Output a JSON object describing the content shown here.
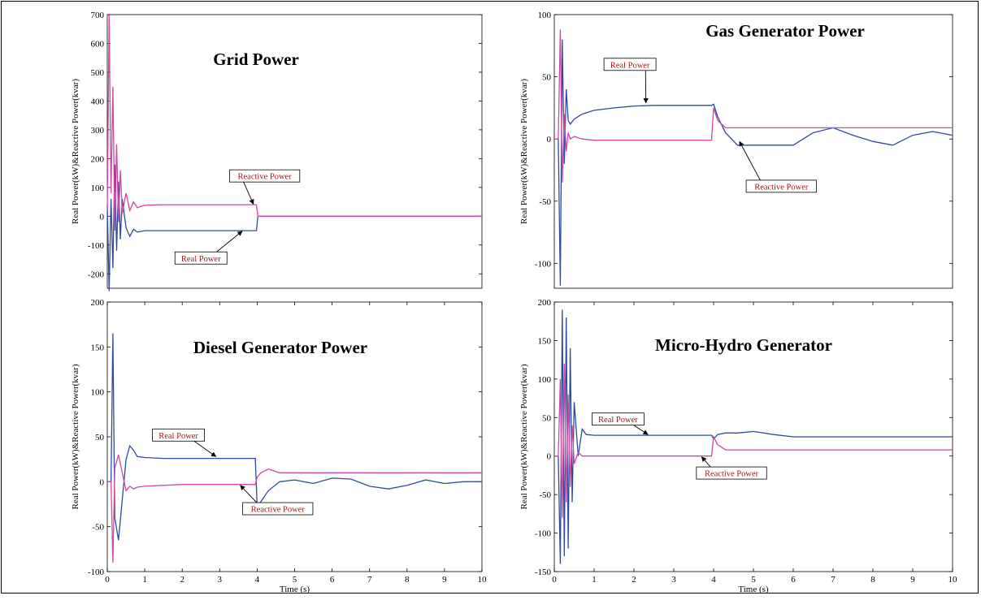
{
  "colors": {
    "real": "#2f4a9c",
    "reactive": "#cc4aa6",
    "label_text": "#a01818",
    "axis": "#000000"
  },
  "chart_data": [
    {
      "type": "line",
      "title": "Grid Power",
      "ylabel": "Real Power(kW)&Reactive Power(kvar)",
      "xlabel": "",
      "xlim": [
        0,
        10
      ],
      "ylim": [
        -250,
        700
      ],
      "yticks": [
        -200,
        -100,
        0,
        100,
        200,
        300,
        400,
        500,
        600,
        700
      ],
      "yticklabels": [
        "-200",
        "-100",
        "0",
        "100",
        "200",
        "300",
        "400",
        "500",
        "600",
        "700"
      ],
      "xticks": [],
      "xticklabels": [],
      "series": [
        {
          "name": "Real Power",
          "color": "#2f4a9c",
          "x": [
            0,
            0.05,
            0.1,
            0.15,
            0.2,
            0.25,
            0.3,
            0.35,
            0.4,
            0.5,
            0.6,
            0.7,
            0.8,
            1,
            1.5,
            2,
            3,
            3.9,
            3.98,
            4.02,
            4.5,
            10
          ],
          "y": [
            40,
            -260,
            60,
            -180,
            180,
            -120,
            120,
            -80,
            60,
            -40,
            -70,
            -45,
            -55,
            -50,
            -50,
            -50,
            -50,
            -50,
            -50,
            0,
            0,
            0
          ]
        },
        {
          "name": "Reactive Power",
          "color": "#cc4aa6",
          "x": [
            0,
            0.05,
            0.1,
            0.15,
            0.2,
            0.25,
            0.3,
            0.35,
            0.4,
            0.5,
            0.6,
            0.7,
            0.8,
            1,
            1.5,
            2,
            3,
            3.9,
            3.98,
            4.02,
            4.5,
            10
          ],
          "y": [
            20,
            700,
            80,
            450,
            -50,
            250,
            -20,
            160,
            10,
            80,
            20,
            50,
            30,
            38,
            40,
            40,
            40,
            40,
            40,
            0,
            0,
            0
          ]
        }
      ],
      "annotations": [
        {
          "text": "Reactive Power",
          "x": 4.2,
          "y": 140,
          "target_x": 3.9,
          "target_y": 42
        },
        {
          "text": "Real Power",
          "x": 2.5,
          "y": -145,
          "target_x": 3.6,
          "target_y": -52
        }
      ]
    },
    {
      "type": "line",
      "title": "Gas Generator Power",
      "ylabel": "Real Power(kW)&Reactive Power(kvar)",
      "xlabel": "",
      "xlim": [
        0,
        10
      ],
      "ylim": [
        -120,
        100
      ],
      "yticks": [
        -100,
        -50,
        0,
        50,
        100
      ],
      "yticklabels": [
        "-100",
        "-50",
        "0",
        "50",
        "100"
      ],
      "xticks": [],
      "xticklabels": [],
      "series": [
        {
          "name": "Real Power",
          "color": "#2f4a9c",
          "x": [
            0,
            0.1,
            0.15,
            0.2,
            0.25,
            0.3,
            0.35,
            0.4,
            0.5,
            0.7,
            1,
            1.5,
            2,
            2.5,
            3,
            3.5,
            3.95,
            4.0,
            4.1,
            4.3,
            4.6,
            5,
            5.5,
            6,
            6.5,
            7,
            7.5,
            8,
            8.5,
            9,
            9.5,
            10
          ],
          "y": [
            0,
            0,
            -118,
            80,
            -20,
            40,
            15,
            12,
            16,
            20,
            23,
            25,
            26.5,
            27,
            27,
            27,
            27,
            28,
            18,
            5,
            -5,
            -5,
            -5,
            -5,
            5,
            9,
            3,
            -2,
            -5,
            3,
            6,
            3
          ]
        },
        {
          "name": "Reactive Power",
          "color": "#cc4aa6",
          "x": [
            0,
            0.1,
            0.15,
            0.2,
            0.25,
            0.3,
            0.35,
            0.4,
            0.5,
            0.7,
            1,
            1.5,
            2,
            2.5,
            3,
            3.5,
            3.95,
            4.0,
            4.1,
            4.3,
            4.6,
            5,
            5.5,
            6,
            6.5,
            7,
            7.5,
            8,
            8.5,
            9,
            9.5,
            10
          ],
          "y": [
            0,
            0,
            88,
            -35,
            20,
            -10,
            5,
            0,
            2,
            0,
            -1,
            -1,
            -1,
            -1,
            -1,
            -1,
            -1,
            25,
            15,
            9,
            9,
            9,
            9,
            9,
            9,
            9,
            9,
            9,
            9,
            9,
            9,
            9
          ]
        }
      ],
      "annotations": [
        {
          "text": "Real Power",
          "x": 1.9,
          "y": 60,
          "target_x": 2.3,
          "target_y": 29
        },
        {
          "text": "Reactive Power",
          "x": 5.7,
          "y": -38,
          "target_x": 4.65,
          "target_y": -2
        }
      ]
    },
    {
      "type": "line",
      "title": "Diesel Generator Power",
      "ylabel": "Real Power(kW)&Reactive Power(kvar)",
      "xlabel": "Time (s)",
      "xlim": [
        0,
        10
      ],
      "ylim": [
        -100,
        200
      ],
      "yticks": [
        -100,
        -50,
        0,
        50,
        100,
        150,
        200
      ],
      "yticklabels": [
        "-100",
        "-50",
        "0",
        "50",
        "100",
        "150",
        "200"
      ],
      "xticks": [
        0,
        1,
        2,
        3,
        4,
        5,
        6,
        7,
        8,
        9,
        10
      ],
      "xticklabels": [
        "0",
        "1",
        "2",
        "3",
        "4",
        "5",
        "6",
        "7",
        "8",
        "9",
        "10"
      ],
      "series": [
        {
          "name": "Real Power",
          "color": "#2f4a9c",
          "x": [
            0,
            0.1,
            0.15,
            0.2,
            0.3,
            0.4,
            0.5,
            0.6,
            0.7,
            0.8,
            1,
            1.5,
            2,
            2.5,
            3,
            3.5,
            3.95,
            4.0,
            4.1,
            4.3,
            4.6,
            5,
            5.5,
            6,
            6.5,
            7,
            7.5,
            8,
            8.5,
            9,
            9.5,
            10
          ],
          "y": [
            0,
            0,
            165,
            -40,
            -65,
            -20,
            25,
            40,
            35,
            28,
            27,
            26,
            26,
            26,
            26,
            26,
            26,
            -28,
            -22,
            -10,
            0,
            2,
            -2,
            4,
            3,
            -5,
            -8,
            -4,
            2,
            -2,
            0,
            0
          ]
        },
        {
          "name": "Reactive Power",
          "color": "#cc4aa6",
          "x": [
            0,
            0.1,
            0.15,
            0.2,
            0.3,
            0.4,
            0.5,
            0.6,
            0.7,
            0.8,
            1,
            1.5,
            2,
            2.5,
            3,
            3.5,
            3.95,
            4.0,
            4.1,
            4.3,
            4.6,
            5,
            5.5,
            6,
            6.5,
            7,
            7.5,
            8,
            8.5,
            9,
            9.5,
            10
          ],
          "y": [
            0,
            0,
            -90,
            15,
            30,
            10,
            -10,
            -5,
            -8,
            -6,
            -5,
            -4,
            -3,
            -3,
            -3,
            -3,
            -3,
            5,
            10,
            14,
            10,
            10,
            10,
            10,
            10,
            10,
            10,
            10,
            10,
            10,
            10,
            10
          ]
        }
      ],
      "annotations": [
        {
          "text": "Real Power",
          "x": 1.9,
          "y": 52,
          "target_x": 2.9,
          "target_y": 28
        },
        {
          "text": "Reactive Power",
          "x": 4.55,
          "y": -30,
          "target_x": 3.55,
          "target_y": -4
        }
      ]
    },
    {
      "type": "line",
      "title": "Micro-Hydro Generator",
      "ylabel": "Real Power(kW)&Reactive Power(kvar)",
      "xlabel": "Time (s)",
      "xlim": [
        0,
        10
      ],
      "ylim": [
        -150,
        200
      ],
      "yticks": [
        -150,
        -100,
        -50,
        0,
        50,
        100,
        150,
        200
      ],
      "yticklabels": [
        "-150",
        "-100",
        "-50",
        "0",
        "50",
        "100",
        "150",
        "200"
      ],
      "xticks": [
        0,
        1,
        2,
        3,
        4,
        5,
        6,
        7,
        8,
        9,
        10
      ],
      "xticklabels": [
        "0",
        "1",
        "2",
        "3",
        "4",
        "5",
        "6",
        "7",
        "8",
        "9",
        "10"
      ],
      "series": [
        {
          "name": "Real Power",
          "color": "#2f4a9c",
          "x": [
            0,
            0.1,
            0.15,
            0.2,
            0.25,
            0.3,
            0.35,
            0.4,
            0.45,
            0.5,
            0.6,
            0.7,
            0.8,
            1,
            1.5,
            2,
            3,
            3.95,
            4.0,
            4.1,
            4.3,
            4.6,
            5,
            5.5,
            6,
            7,
            8,
            9,
            10
          ],
          "y": [
            0,
            0,
            -140,
            190,
            -130,
            180,
            -120,
            140,
            -60,
            70,
            0,
            35,
            28,
            27,
            27,
            27,
            27,
            27,
            22,
            28,
            30,
            30,
            32,
            28,
            25,
            25,
            25,
            25,
            25
          ]
        },
        {
          "name": "Reactive Power",
          "color": "#cc4aa6",
          "x": [
            0,
            0.1,
            0.15,
            0.2,
            0.25,
            0.3,
            0.35,
            0.4,
            0.45,
            0.5,
            0.6,
            0.7,
            0.8,
            1,
            1.5,
            2,
            3,
            3.95,
            4.0,
            4.1,
            4.3,
            4.6,
            5,
            5.5,
            6,
            7,
            8,
            9,
            10
          ],
          "y": [
            0,
            0,
            100,
            -80,
            120,
            -60,
            80,
            -40,
            40,
            -10,
            5,
            0,
            0,
            0,
            0,
            0,
            0,
            0,
            25,
            15,
            8,
            8,
            8,
            8,
            8,
            8,
            8,
            8,
            8
          ]
        }
      ],
      "annotations": [
        {
          "text": "Real Power",
          "x": 1.6,
          "y": 48,
          "target_x": 2.35,
          "target_y": 28
        },
        {
          "text": "Reactive Power",
          "x": 4.45,
          "y": -22,
          "target_x": 3.7,
          "target_y": -1
        }
      ]
    }
  ]
}
